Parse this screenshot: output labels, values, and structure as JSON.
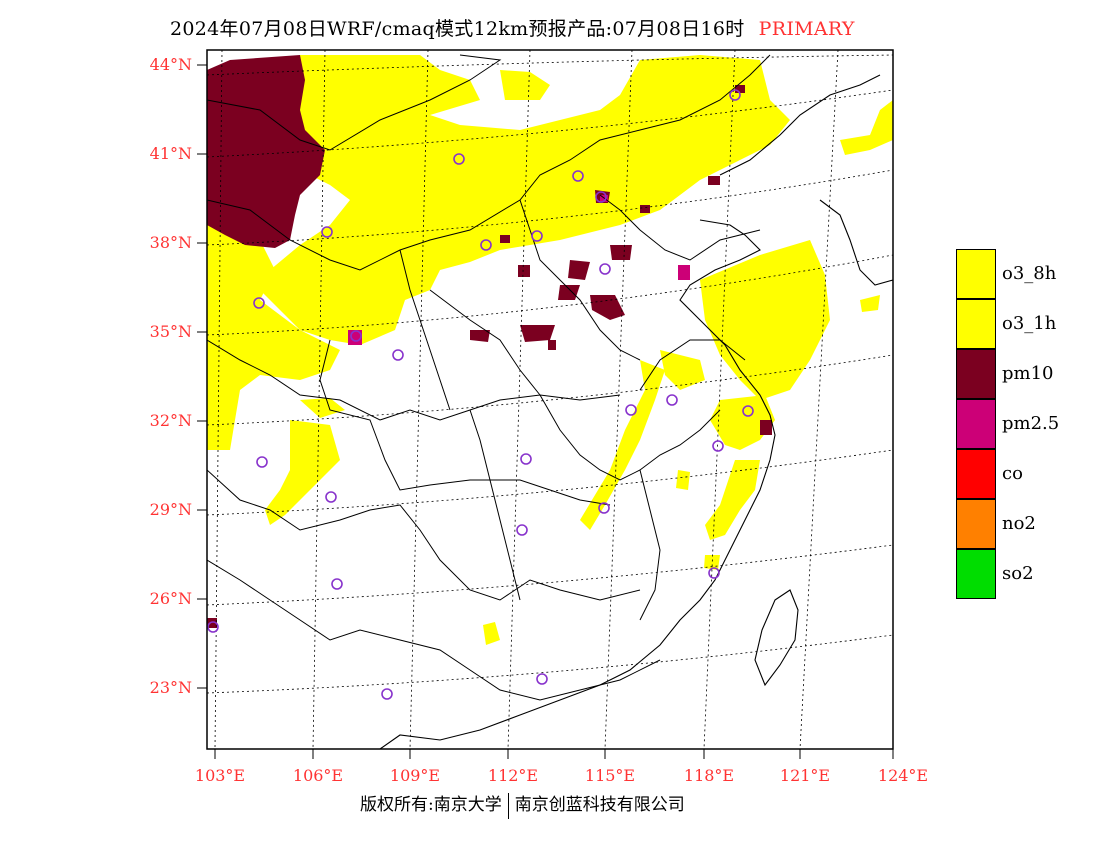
{
  "title": {
    "main": "2024年07月08日WRF/cmaq模式12km预报产品:07月08日16时",
    "tag": "PRIMARY"
  },
  "map": {
    "lat_labels": [
      "44°N",
      "41°N",
      "38°N",
      "35°N",
      "32°N",
      "29°N",
      "26°N",
      "23°N"
    ],
    "lon_labels": [
      "103°E",
      "106°E",
      "109°E",
      "112°E",
      "115°E",
      "118°E",
      "121°E",
      "124°E"
    ],
    "colors": {
      "o3": "#ffff00",
      "pm10": "#7b0020",
      "pm25": "#cc0077",
      "site_marker": "#8833cc",
      "grid_label": "#ff3333"
    }
  },
  "legend": [
    {
      "label": "o3_8h",
      "color": "#ffff00"
    },
    {
      "label": "o3_1h",
      "color": "#ffff00"
    },
    {
      "label": "pm10",
      "color": "#7b0020"
    },
    {
      "label": "pm2.5",
      "color": "#cc0077"
    },
    {
      "label": "co",
      "color": "#ff0000"
    },
    {
      "label": "no2",
      "color": "#ff8000"
    },
    {
      "label": "so2",
      "color": "#00dd00"
    }
  ],
  "footer": {
    "left": "版权所有:南京大学",
    "right": "南京创蓝科技有限公司"
  }
}
